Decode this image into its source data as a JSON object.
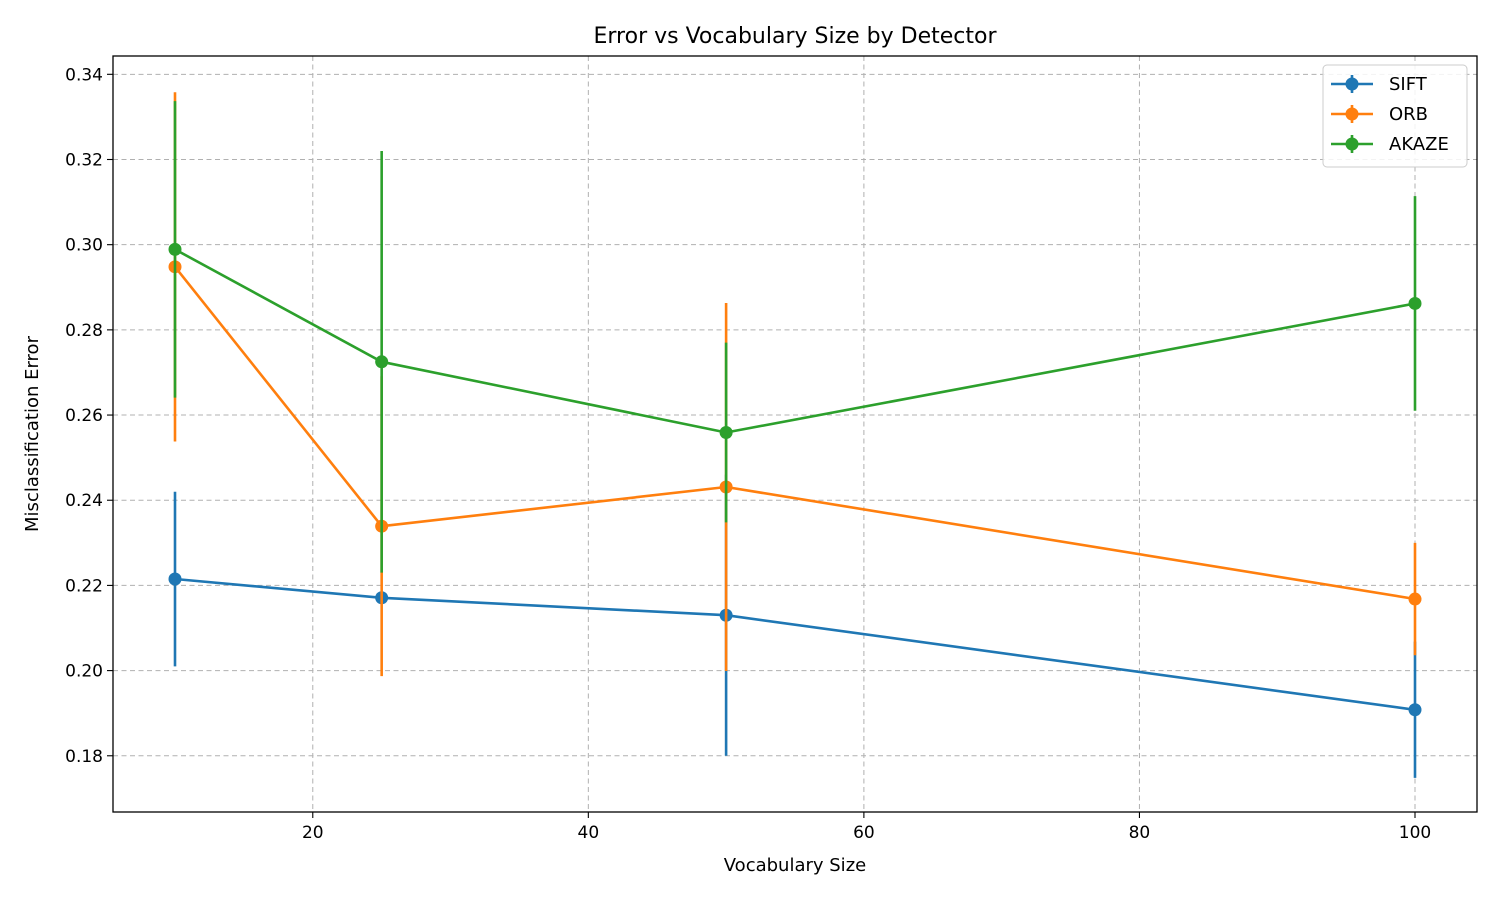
{
  "chart_data": {
    "type": "line",
    "title": "Error vs Vocabulary Size by Detector",
    "xlabel": "Vocabulary Size",
    "ylabel": "Misclassification Error",
    "xlim": [
      5.5,
      104.5
    ],
    "ylim": [
      0.1668,
      0.3443
    ],
    "xticks": [
      20,
      40,
      60,
      80,
      100
    ],
    "yticks": [
      0.18,
      0.2,
      0.22,
      0.24,
      0.26,
      0.28,
      0.3,
      0.32,
      0.34
    ],
    "grid": true,
    "legend_position": "top-right",
    "x": [
      10,
      25,
      50,
      100
    ],
    "series": [
      {
        "name": "SIFT",
        "color": "#1f77b4",
        "values": [
          0.2215,
          0.2171,
          0.213,
          0.1908
        ],
        "errors": [
          0.0205,
          0.0,
          0.033,
          0.016
        ]
      },
      {
        "name": "ORB",
        "color": "#ff7f0e",
        "values": [
          0.2948,
          0.2339,
          0.2431,
          0.2168
        ],
        "errors": [
          0.041,
          0.0352,
          0.0432,
          0.0132
        ]
      },
      {
        "name": "AKAZE",
        "color": "#2ca02c",
        "values": [
          0.2989,
          0.2725,
          0.2559,
          0.2862
        ],
        "errors": [
          0.0348,
          0.0495,
          0.0211,
          0.0252
        ]
      }
    ]
  }
}
